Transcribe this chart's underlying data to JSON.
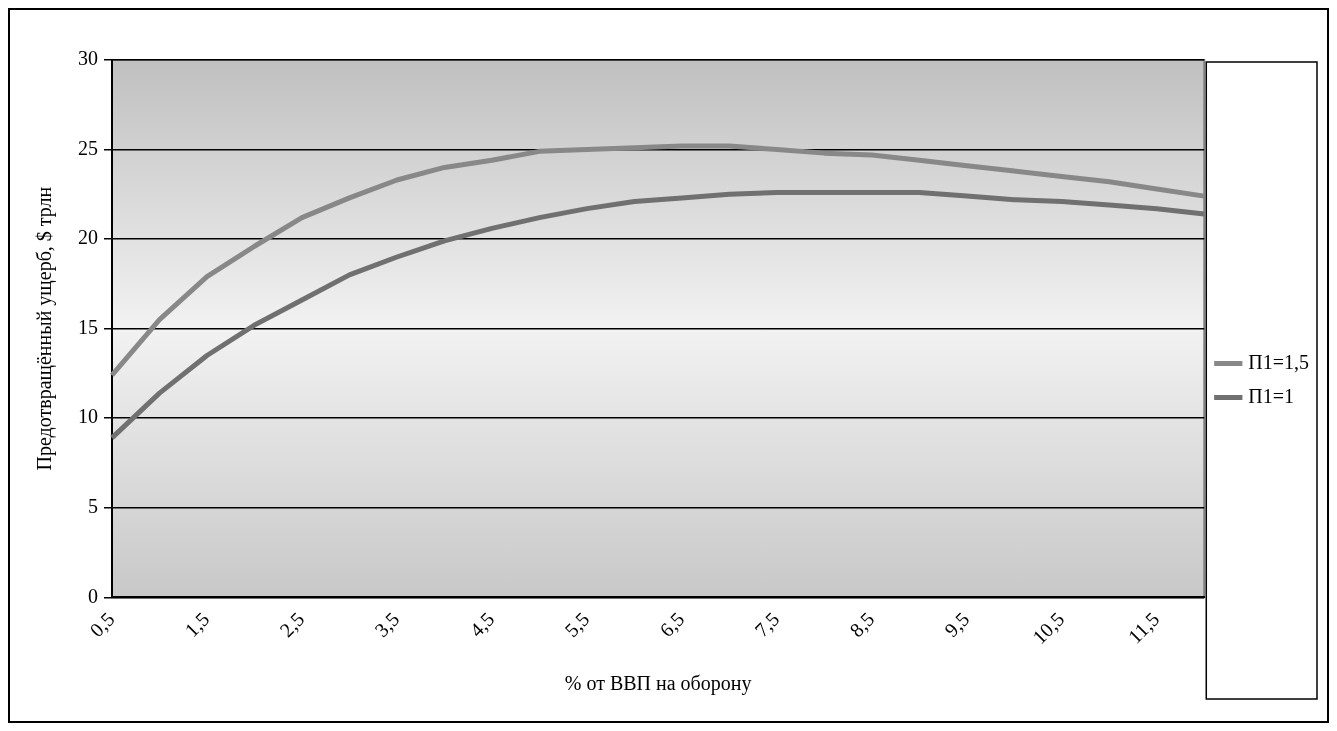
{
  "chart_data": {
    "type": "line",
    "xlabel": "% от ВВП на оборону",
    "ylabel": "Предотвращённый ущерб, $ трлн",
    "categories": [
      "0,5",
      null,
      "1,5",
      null,
      "2,5",
      null,
      "3,5",
      null,
      "4,5",
      null,
      "5,5",
      null,
      "6,5",
      null,
      "7,5",
      null,
      "8,5",
      null,
      "9,5",
      null,
      "10,5",
      null,
      "11,5",
      null
    ],
    "series": [
      {
        "name": "П1=1,5",
        "color": "#888888",
        "values": [
          12.4,
          15.5,
          17.9,
          19.6,
          21.2,
          22.3,
          23.3,
          24.0,
          24.4,
          24.9,
          25.0,
          25.1,
          25.2,
          25.2,
          25.0,
          24.8,
          24.7,
          24.4,
          24.1,
          23.8,
          23.5,
          23.2,
          22.8,
          22.4
        ]
      },
      {
        "name": "П1=1",
        "color": "#707070",
        "values": [
          8.9,
          11.4,
          13.5,
          15.2,
          16.6,
          18.0,
          19.0,
          19.9,
          20.6,
          21.2,
          21.7,
          22.1,
          22.3,
          22.5,
          22.6,
          22.6,
          22.6,
          22.6,
          22.4,
          22.2,
          22.1,
          21.9,
          21.7,
          21.4
        ]
      }
    ],
    "ylim": [
      0,
      30
    ],
    "yticks": [
      0,
      5,
      10,
      15,
      20,
      25,
      30
    ],
    "grid": "y",
    "legend": "right",
    "marker": "none",
    "line_style": "solid"
  }
}
